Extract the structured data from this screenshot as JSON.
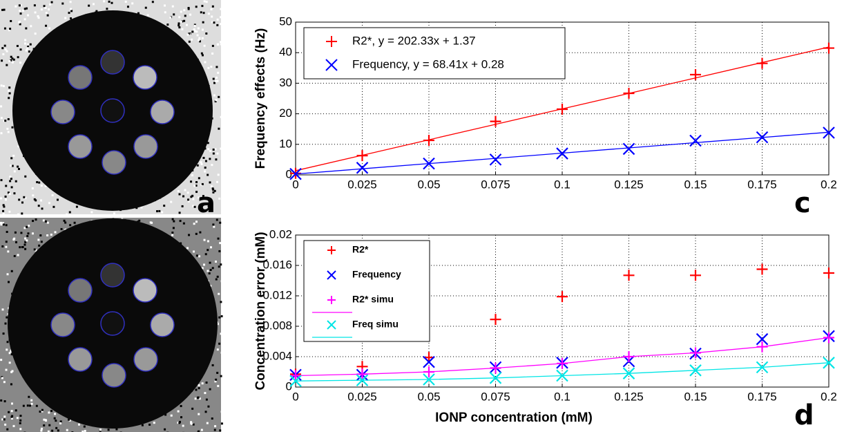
{
  "image_panels": [
    {
      "panel_label": "a"
    }
  ],
  "chart_data": [
    {
      "type": "scatter",
      "panel_label": "c",
      "ylabel": "Frequency effects (Hz)",
      "x": [
        0,
        0.025,
        0.05,
        0.075,
        0.1,
        0.125,
        0.15,
        0.175,
        0.2
      ],
      "xlim": [
        0,
        0.2
      ],
      "xticks": [
        0,
        0.025,
        0.05,
        0.075,
        0.1,
        0.125,
        0.15,
        0.175,
        0.2
      ],
      "ylim": [
        0,
        50
      ],
      "yticks": [
        0,
        10,
        20,
        30,
        40,
        50
      ],
      "grid": true,
      "legend": "upper left",
      "series": [
        {
          "name": "R2*, y = 202.33x + 1.37",
          "color": "#ff0000",
          "marker": "+",
          "values": [
            0.5,
            6.3,
            11.3,
            17.5,
            21.5,
            26.7,
            32.8,
            36.5,
            41.5
          ],
          "fit_values": [
            1.37,
            6.43,
            11.49,
            16.54,
            21.6,
            26.66,
            31.72,
            36.78,
            41.84
          ]
        },
        {
          "name": "Frequency, y = 68.41x + 0.28",
          "color": "#0000ff",
          "marker": "x",
          "values": [
            0.3,
            2.3,
            3.7,
            5,
            7,
            8.5,
            11.2,
            12.3,
            13.8
          ],
          "fit_values": [
            0.28,
            1.99,
            3.7,
            5.41,
            7.12,
            8.83,
            10.54,
            12.25,
            13.96
          ]
        }
      ]
    },
    {
      "type": "scatter",
      "panel_label": "d",
      "xlabel": "IONP concentration (mM)",
      "ylabel": "Concentration error (mM)",
      "x": [
        0,
        0.025,
        0.05,
        0.075,
        0.1,
        0.125,
        0.15,
        0.175,
        0.2
      ],
      "xlim": [
        0,
        0.2
      ],
      "xticks": [
        0,
        0.025,
        0.05,
        0.075,
        0.1,
        0.125,
        0.15,
        0.175,
        0.2
      ],
      "ylim": [
        0,
        0.02
      ],
      "yticks": [
        0,
        0.004,
        0.008,
        0.012,
        0.016,
        0.02
      ],
      "grid": true,
      "legend": "upper left",
      "series": [
        {
          "name": "R2*",
          "color": "#ff0000",
          "marker": "+",
          "values": [
            0.0017,
            0.0027,
            0.0039,
            0.0089,
            0.0119,
            0.0147,
            0.0147,
            0.0155,
            0.015
          ]
        },
        {
          "name": "Frequency",
          "color": "#0000ff",
          "marker": "x",
          "values": [
            0.0016,
            0.0016,
            0.0033,
            0.0026,
            0.0032,
            0.0034,
            0.0044,
            0.0063,
            0.0067
          ]
        },
        {
          "name": "R2* simu",
          "color": "#ff00ff",
          "marker": "+",
          "line": true,
          "values": [
            0.0015,
            0.0017,
            0.002,
            0.0025,
            0.0031,
            0.004,
            0.0045,
            0.0053,
            0.0065
          ]
        },
        {
          "name": "Freq simu",
          "color": "#00e5e5",
          "marker": "x",
          "line": true,
          "values": [
            0.0008,
            0.0009,
            0.001,
            0.0012,
            0.0015,
            0.0018,
            0.0022,
            0.0026,
            0.0032
          ]
        }
      ]
    }
  ]
}
